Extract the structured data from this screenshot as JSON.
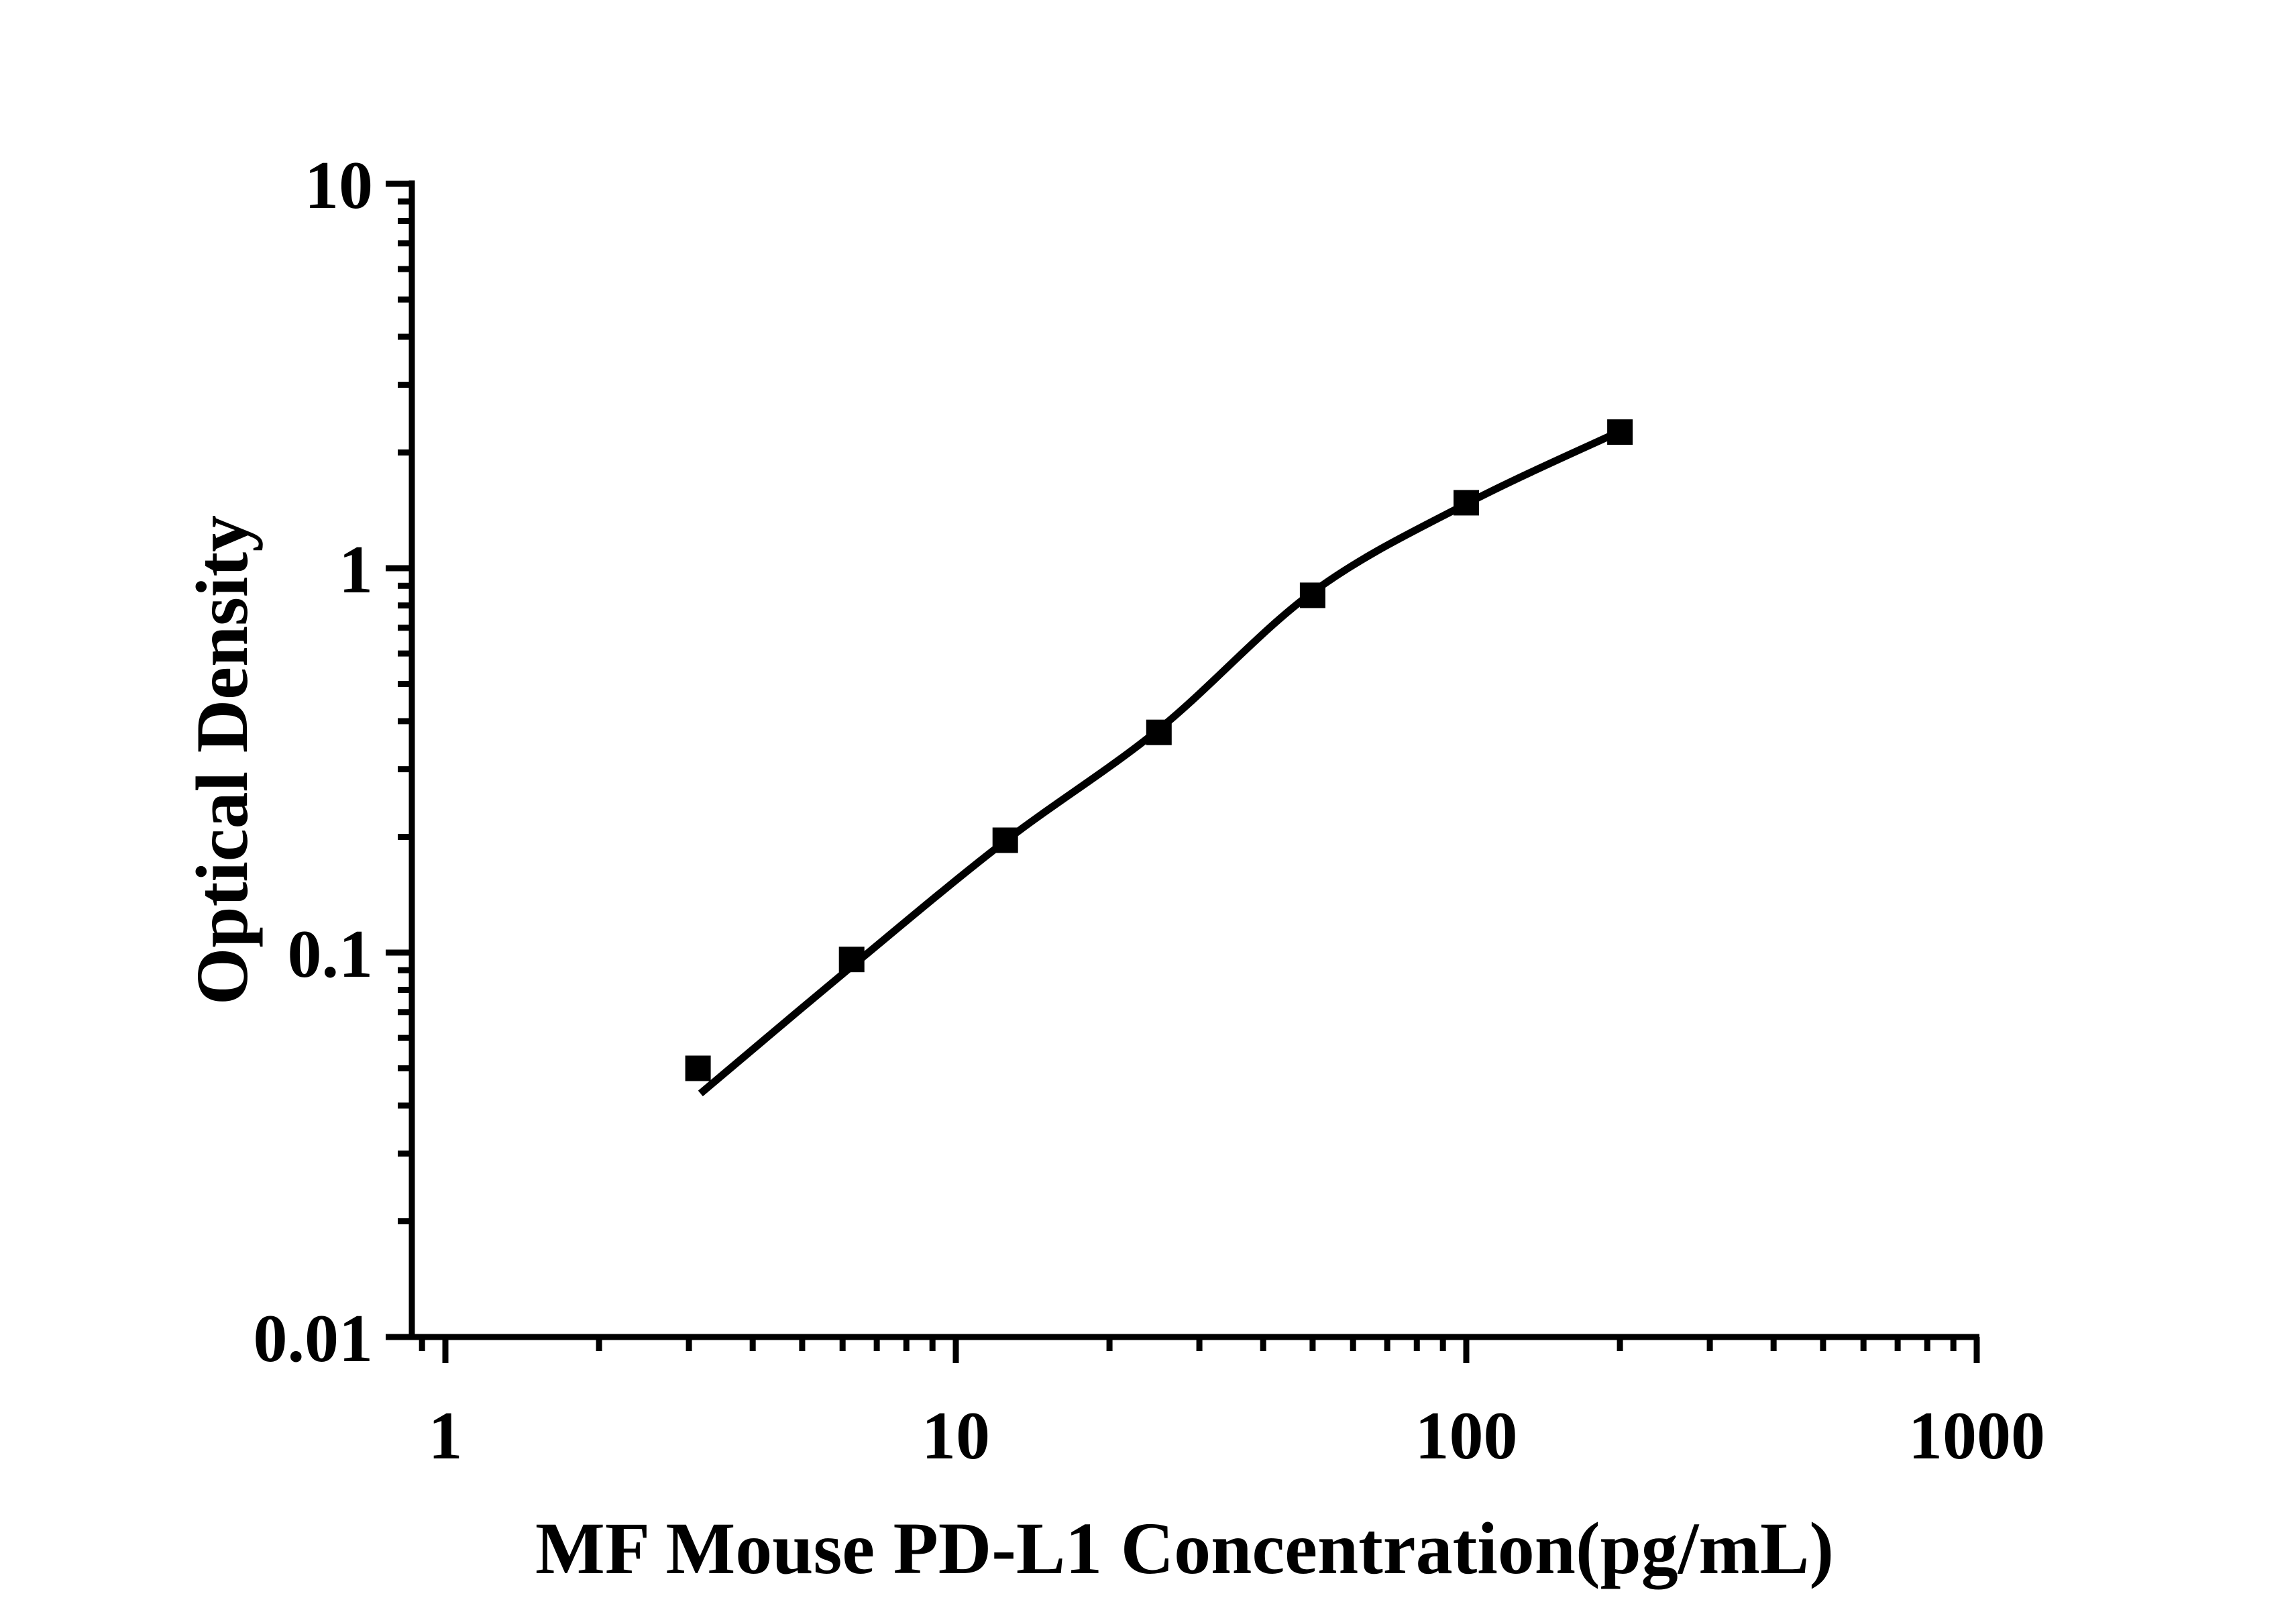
{
  "figure": {
    "background": "#ffffff",
    "ink_color": "#000000"
  },
  "chart_data": {
    "type": "scatter",
    "title": "",
    "xlabel": "MF Mouse PD-L1 Concentration(pg/mL)",
    "ylabel": "Optical Density",
    "x_scale": "log",
    "y_scale": "log",
    "xlim": [
      1,
      1000
    ],
    "ylim": [
      0.01,
      10
    ],
    "x_ticks": [
      1,
      10,
      100,
      1000
    ],
    "x_tick_labels": [
      "1",
      "10",
      "100",
      "1000"
    ],
    "y_ticks": [
      10,
      1,
      0.1,
      0.01
    ],
    "y_tick_labels": [
      "10",
      "1",
      "0.1",
      "0.01"
    ],
    "grid": false,
    "legend": null,
    "marker": "filled-square",
    "marker_color": "#000000",
    "line_color": "#000000",
    "series": [
      {
        "name": "standard-curve-points",
        "x": [
          3.125,
          6.25,
          12.5,
          25,
          50,
          100,
          200
        ],
        "y": [
          0.05,
          0.096,
          0.196,
          0.374,
          0.85,
          1.48,
          2.26
        ]
      }
    ],
    "fit_curve": {
      "x": [
        3.16,
        6.25,
        12.5,
        25,
        50,
        100,
        200
      ],
      "y": [
        0.043,
        0.092,
        0.195,
        0.381,
        0.866,
        1.47,
        2.27
      ]
    }
  }
}
